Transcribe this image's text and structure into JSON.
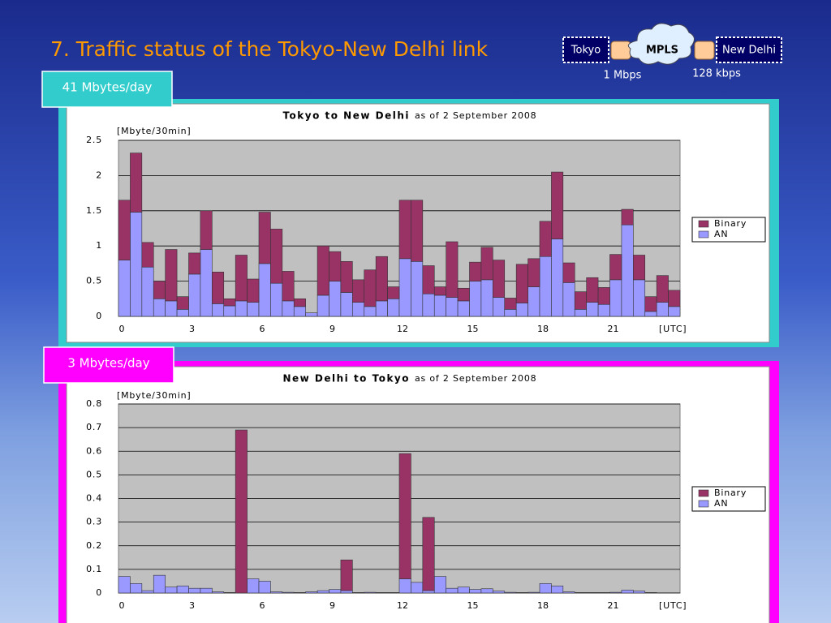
{
  "slide": {
    "title": "7.  Traffic status of the Tokyo-New Delhi link",
    "diagram": {
      "left": "Tokyo",
      "cloud": "MPLS",
      "right": "New Delhi",
      "left_speed": "1 Mbps",
      "right_speed": "128 kbps"
    }
  },
  "chart_data": [
    {
      "type": "bar",
      "stacked": true,
      "annotation": "41 Mbytes/day",
      "title": "Tokyo to New Delhi",
      "subtitle": "as of 2 September 2008",
      "y_label": "[Mbyte/30min]",
      "x_label": "[UTC]",
      "categories": [
        "0",
        null,
        null,
        null,
        null,
        null,
        "3",
        null,
        null,
        null,
        null,
        null,
        "6",
        null,
        null,
        null,
        null,
        null,
        "9",
        null,
        null,
        null,
        null,
        null,
        "12",
        null,
        null,
        null,
        null,
        null,
        "15",
        null,
        null,
        null,
        null,
        null,
        "18",
        null,
        null,
        null,
        null,
        null,
        "21",
        null,
        null,
        null,
        null,
        null
      ],
      "series": [
        {
          "name": "AN",
          "color": "#9999ff",
          "values": [
            0.8,
            1.48,
            0.7,
            0.25,
            0.22,
            0.1,
            0.6,
            0.95,
            0.18,
            0.15,
            0.22,
            0.2,
            0.75,
            0.47,
            0.22,
            0.14,
            0.05,
            0.3,
            0.5,
            0.34,
            0.2,
            0.14,
            0.22,
            0.25,
            0.82,
            0.78,
            0.32,
            0.3,
            0.27,
            0.22,
            0.5,
            0.52,
            0.27,
            0.1,
            0.19,
            0.42,
            0.85,
            1.1,
            0.48,
            0.1,
            0.2,
            0.17,
            0.52,
            1.3,
            0.52,
            0.07,
            0.2,
            0.14
          ]
        },
        {
          "name": "Binary",
          "color": "#993366",
          "values": [
            0.85,
            0.84,
            0.35,
            0.25,
            0.73,
            0.18,
            0.3,
            0.55,
            0.45,
            0.1,
            0.65,
            0.33,
            0.73,
            0.77,
            0.42,
            0.11,
            0,
            0.7,
            0.42,
            0.44,
            0.32,
            0.52,
            0.63,
            0.17,
            0.83,
            0.87,
            0.4,
            0.12,
            0.79,
            0.18,
            0.27,
            0.46,
            0.53,
            0.16,
            0.55,
            0.4,
            0.5,
            0.95,
            0.28,
            0.25,
            0.35,
            0.24,
            0.36,
            0.22,
            0.35,
            0.21,
            0.38,
            0.23
          ]
        }
      ],
      "ylim": [
        0,
        2.5
      ],
      "yticks": [
        0,
        0.5,
        1,
        1.5,
        2,
        2.5
      ],
      "grid": true,
      "legend": "right"
    },
    {
      "type": "bar",
      "stacked": true,
      "annotation": "3 Mbytes/day",
      "title": "New Delhi to Tokyo",
      "subtitle": "as of 2 September 2008",
      "y_label": "[Mbyte/30min]",
      "x_label": "[UTC]",
      "categories": [
        "0",
        null,
        null,
        null,
        null,
        null,
        "3",
        null,
        null,
        null,
        null,
        null,
        "6",
        null,
        null,
        null,
        null,
        null,
        "9",
        null,
        null,
        null,
        null,
        null,
        "12",
        null,
        null,
        null,
        null,
        null,
        "15",
        null,
        null,
        null,
        null,
        null,
        "18",
        null,
        null,
        null,
        null,
        null,
        "21",
        null,
        null,
        null,
        null,
        null
      ],
      "series": [
        {
          "name": "AN",
          "color": "#9999ff",
          "values": [
            0.07,
            0.04,
            0.01,
            0.075,
            0.025,
            0.03,
            0.02,
            0.02,
            0.005,
            0.002,
            0,
            0.06,
            0.05,
            0.005,
            0.003,
            0.002,
            0.005,
            0.01,
            0.015,
            0.01,
            0.002,
            0.003,
            0.002,
            0.002,
            0.06,
            0.045,
            0.01,
            0.07,
            0.02,
            0.025,
            0.015,
            0.018,
            0.008,
            0.003,
            0.002,
            0.003,
            0.04,
            0.03,
            0.005,
            0.002,
            0.002,
            0.002,
            0.003,
            0.012,
            0.008,
            0.002,
            0.001,
            0.001
          ]
        },
        {
          "name": "Binary",
          "color": "#993366",
          "values": [
            0,
            0,
            0,
            0,
            0,
            0,
            0,
            0,
            0,
            0,
            0.69,
            0,
            0,
            0,
            0,
            0,
            0,
            0,
            0,
            0.13,
            0,
            0,
            0,
            0,
            0.53,
            0,
            0.31,
            0,
            0,
            0,
            0,
            0,
            0,
            0,
            0,
            0,
            0,
            0,
            0,
            0,
            0,
            0,
            0,
            0,
            0,
            0,
            0,
            0
          ]
        }
      ],
      "ylim": [
        0,
        0.8
      ],
      "yticks": [
        0,
        0.1,
        0.2,
        0.3,
        0.4,
        0.5,
        0.6,
        0.7,
        0.8
      ],
      "grid": true,
      "legend": "right"
    }
  ]
}
